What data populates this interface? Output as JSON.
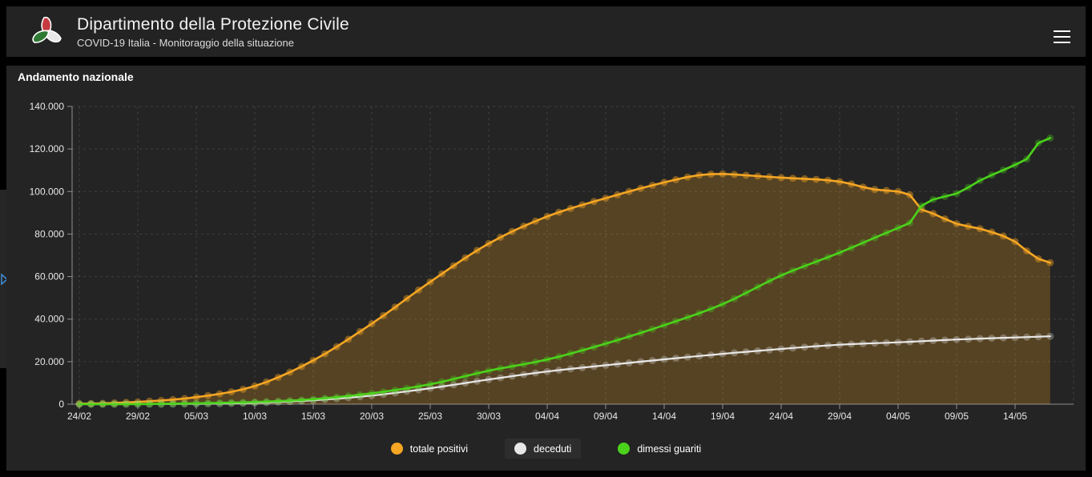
{
  "header": {
    "title": "Dipartimento della Protezione Civile",
    "subtitle": "COVID-19 Italia - Monitoraggio della situazione",
    "logo_icon": "protezione-civile-emblem",
    "logo_colors": {
      "red": "#c63a41",
      "white": "#e8e8e8",
      "green": "#2f7a33"
    },
    "menu_icon": "hamburger-icon"
  },
  "panel": {
    "title": "Andamento nazionale"
  },
  "sidebar_handle": {
    "icon": "chevron-right-icon",
    "arrow_color": "#3f8fd4"
  },
  "colors": {
    "page_bg": "#000000",
    "header_bg": "#232323",
    "panel_bg": "#242424",
    "grid": "rgba(255,255,255,0.13)",
    "axis": "#8f8f8f",
    "tick_text": "#e8e8e8",
    "legend_highlight_bg": "#2d2d2d"
  },
  "chart_data": {
    "type": "line",
    "title": "Andamento nazionale",
    "grid": true,
    "legend_position": "bottom",
    "xlabel": "",
    "ylabel": "",
    "ylim": [
      0,
      140000
    ],
    "x_total_days": 83,
    "x_tick_days": [
      0,
      5,
      10,
      15,
      20,
      25,
      30,
      35,
      40,
      45,
      50,
      55,
      60,
      65,
      70,
      75,
      80
    ],
    "x_tick_labels": [
      "24/02",
      "29/02",
      "05/03",
      "10/03",
      "15/03",
      "20/03",
      "25/03",
      "30/03",
      "04/04",
      "09/04",
      "14/04",
      "19/04",
      "24/04",
      "29/04",
      "04/05",
      "09/05",
      "14/05"
    ],
    "extra_gridline_day": 85,
    "y_ticks": [
      0,
      20000,
      40000,
      60000,
      80000,
      100000,
      120000,
      140000
    ],
    "y_tick_labels": [
      "0",
      "20.000",
      "40.000",
      "60.000",
      "80.000",
      "100.000",
      "120.000",
      "140.000"
    ],
    "series": [
      {
        "name": "totale positivi",
        "color": "#f5a623",
        "area": true,
        "area_opacity": 0.24,
        "highlighted": false,
        "control_points": [
          [
            0,
            221
          ],
          [
            1,
            311
          ],
          [
            2,
            385
          ],
          [
            3,
            588
          ],
          [
            4,
            821
          ],
          [
            5,
            1049
          ],
          [
            10,
            3296
          ],
          [
            15,
            8514
          ],
          [
            20,
            20603
          ],
          [
            25,
            37860
          ],
          [
            30,
            57521
          ],
          [
            35,
            75528
          ],
          [
            40,
            88274
          ],
          [
            45,
            96877
          ],
          [
            50,
            104291
          ],
          [
            53,
            107699
          ],
          [
            55,
            108257
          ],
          [
            57,
            107616
          ],
          [
            60,
            106527
          ],
          [
            65,
            104657
          ],
          [
            68,
            100943
          ],
          [
            70,
            99980
          ],
          [
            71,
            98467
          ],
          [
            72,
            91528
          ],
          [
            73,
            89624
          ],
          [
            75,
            84842
          ],
          [
            77,
            82488
          ],
          [
            80,
            76440
          ],
          [
            81,
            72070
          ],
          [
            82,
            68351
          ],
          [
            83,
            66553
          ]
        ]
      },
      {
        "name": "deceduti",
        "color": "#e8e8e8",
        "area": false,
        "highlighted": true,
        "control_points": [
          [
            0,
            7
          ],
          [
            5,
            29
          ],
          [
            10,
            148
          ],
          [
            15,
            631
          ],
          [
            20,
            1809
          ],
          [
            25,
            4032
          ],
          [
            30,
            7503
          ],
          [
            35,
            11591
          ],
          [
            40,
            15362
          ],
          [
            45,
            18279
          ],
          [
            50,
            21067
          ],
          [
            55,
            23660
          ],
          [
            60,
            25969
          ],
          [
            65,
            27967
          ],
          [
            70,
            29079
          ],
          [
            75,
            30395
          ],
          [
            80,
            31368
          ],
          [
            83,
            31908
          ]
        ]
      },
      {
        "name": "dimessi guariti",
        "color": "#4bd31b",
        "area": false,
        "highlighted": false,
        "control_points": [
          [
            0,
            1
          ],
          [
            5,
            50
          ],
          [
            10,
            414
          ],
          [
            15,
            1004
          ],
          [
            20,
            2335
          ],
          [
            25,
            5129
          ],
          [
            30,
            9362
          ],
          [
            35,
            15729
          ],
          [
            40,
            20996
          ],
          [
            45,
            28470
          ],
          [
            50,
            37130
          ],
          [
            55,
            47055
          ],
          [
            60,
            60498
          ],
          [
            65,
            71252
          ],
          [
            68,
            78249
          ],
          [
            70,
            82879
          ],
          [
            71,
            85231
          ],
          [
            72,
            93245
          ],
          [
            73,
            96276
          ],
          [
            75,
            99023
          ],
          [
            77,
            105186
          ],
          [
            80,
            112541
          ],
          [
            81,
            115288
          ],
          [
            82,
            122810
          ],
          [
            83,
            125176
          ]
        ]
      }
    ]
  }
}
